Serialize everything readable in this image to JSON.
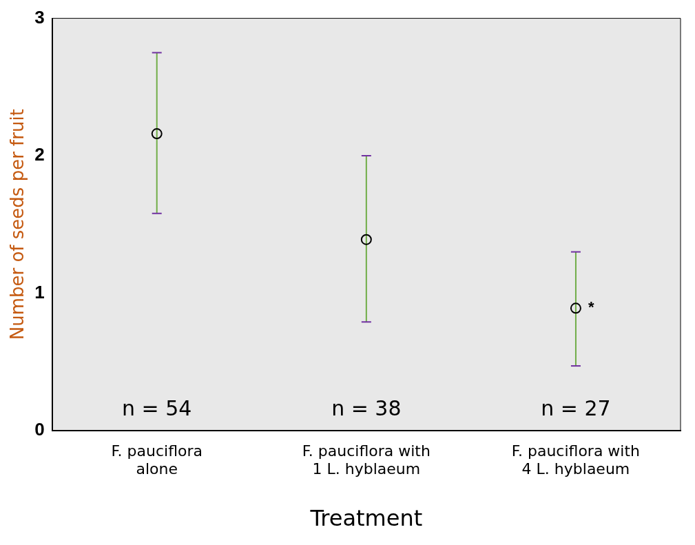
{
  "chart_data": {
    "type": "scatter",
    "xlabel": "Treatment",
    "ylabel": "Number of seeds per fruit",
    "categories": [
      "F. pauciflora\nalone",
      "F. pauciflora with\n1 L. hyblaeum",
      "F. pauciflora with\n4 L. hyblaeum"
    ],
    "series": [
      {
        "color": "#000000",
        "values": [
          2.16,
          1.39,
          0.89
        ],
        "errors": [
          [
            1.58,
            2.75
          ],
          [
            0.79,
            2.0
          ],
          [
            0.47,
            1.3
          ]
        ]
      }
    ],
    "ylim": [
      0,
      3
    ],
    "yticks": [
      0,
      1,
      2,
      3
    ],
    "grid": false,
    "legend": false,
    "marker": "circle",
    "annotations": [
      "n = 54",
      "n = 38",
      "n = 27",
      {
        "text": "*",
        "x": "F. pauciflora with\n4 L. hyblaeum",
        "y": 0.89
      }
    ]
  }
}
